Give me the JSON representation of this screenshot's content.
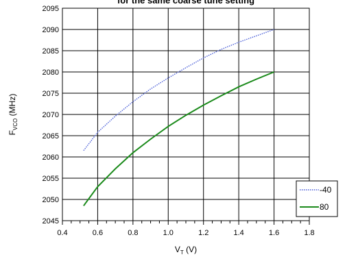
{
  "chart_data": {
    "type": "line",
    "title": "for the same coarse tune setting",
    "xlabel": {
      "main": "V",
      "sub": "T",
      "unit": " (V)"
    },
    "ylabel": {
      "main": "F",
      "sub": "VCO",
      "unit": " (MHz)"
    },
    "xlim": [
      0.4,
      1.8
    ],
    "ylim": [
      2045,
      2095
    ],
    "xticks": [
      "0.4",
      "0.6",
      "0.8",
      "1.0",
      "1.2",
      "1.4",
      "1.6",
      "1.8"
    ],
    "yticks": [
      "2045",
      "2050",
      "2055",
      "2060",
      "2065",
      "2070",
      "2075",
      "2080",
      "2085",
      "2090",
      "2095"
    ],
    "grid": true,
    "legend_position": "bottom-right",
    "series": [
      {
        "name": "-40",
        "color": "#4a5ed8",
        "style": "dotted",
        "x": [
          0.52,
          0.6,
          0.7,
          0.8,
          0.9,
          1.0,
          1.1,
          1.2,
          1.3,
          1.4,
          1.5,
          1.6
        ],
        "y": [
          2061.5,
          2065.8,
          2069.6,
          2073.0,
          2076.0,
          2078.6,
          2081.0,
          2083.3,
          2085.3,
          2087.0,
          2088.5,
          2090.0
        ]
      },
      {
        "name": "80",
        "color": "#1a8a1a",
        "style": "solid",
        "x": [
          0.52,
          0.6,
          0.7,
          0.8,
          0.9,
          1.0,
          1.1,
          1.2,
          1.3,
          1.4,
          1.5,
          1.6
        ],
        "y": [
          2048.5,
          2053.0,
          2057.2,
          2061.0,
          2064.2,
          2067.2,
          2069.8,
          2072.2,
          2074.4,
          2076.5,
          2078.3,
          2080.0
        ]
      }
    ]
  }
}
